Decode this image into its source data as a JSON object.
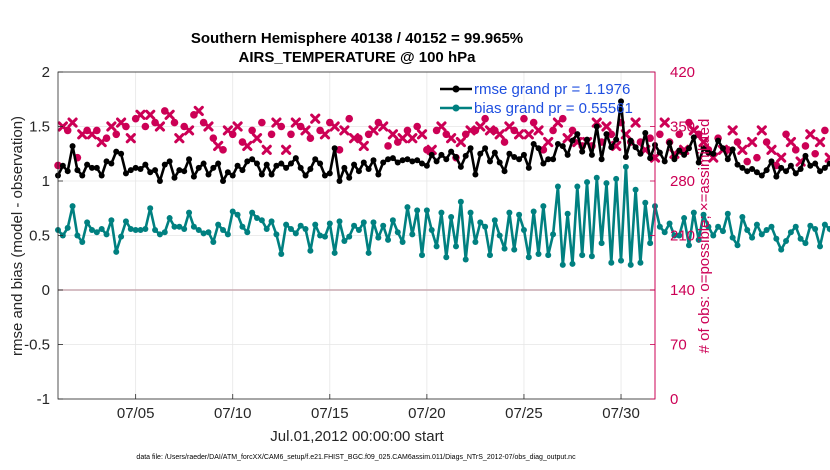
{
  "figure": {
    "title_line1": "Southern Hemisphere 40138 / 40152 = 99.965%",
    "title_line2": "AIRS_TEMPERATURE @ 100 hPa",
    "footer": "data file: /Users/raeder/DAI/ATM_forcXX/CAM6_setup/f.e21.FHIST_BGC.f09_025.CAM6assim.011/Diags_NTrS_2012-07/obs_diag_output.nc"
  },
  "chart_data": {
    "type": "line",
    "title": "Southern Hemisphere 40138 / 40152 = 99.965%",
    "subtitle": "AIRS_TEMPERATURE @ 100 hPa",
    "xlabel": "Jul.01,2012 00:00:00 start",
    "ylabel": "rmse and bias (model - observation)",
    "y2label": "# of obs: o=possible; ×=assimilated",
    "xlim": [
      1.0,
      31.75
    ],
    "ylim": [
      -1,
      2
    ],
    "y2lim": [
      0,
      420
    ],
    "x_ticks": [
      5,
      10,
      15,
      20,
      25,
      30
    ],
    "x_tick_labels": [
      "07/05",
      "07/10",
      "07/15",
      "07/20",
      "07/25",
      "07/30"
    ],
    "y_ticks": [
      -1,
      -0.5,
      0,
      0.5,
      1,
      1.5,
      2
    ],
    "y_tick_labels": [
      "-1",
      "-0.5",
      "0",
      "0.5",
      "1",
      "1.5",
      "2"
    ],
    "y2_ticks": [
      0,
      70,
      140,
      210,
      280,
      350,
      420
    ],
    "y2_tick_labels": [
      "0",
      "70",
      "140",
      "210",
      "280",
      "350",
      "420"
    ],
    "zero_line": 0,
    "grid": true,
    "legend_position": "top-right",
    "x_start": 1.0,
    "x_step": 0.25,
    "series": [
      {
        "name": "rmse grand pr = 1.1976",
        "color": "#000000",
        "marker": "circle",
        "values": [
          1.05,
          1.14,
          1.09,
          1.32,
          1.1,
          1.05,
          1.15,
          1.12,
          1.12,
          1.05,
          1.18,
          1.16,
          1.27,
          1.25,
          1.07,
          1.1,
          1.12,
          1.11,
          1.15,
          1.08,
          1.1,
          1.0,
          1.15,
          1.18,
          1.03,
          1.1,
          1.09,
          1.2,
          1.04,
          1.12,
          1.16,
          1.06,
          1.12,
          1.16,
          1.0,
          1.08,
          1.05,
          1.14,
          1.1,
          1.18,
          1.2,
          1.16,
          1.06,
          1.15,
          1.06,
          1.14,
          1.16,
          1.12,
          1.16,
          1.21,
          1.12,
          1.05,
          1.11,
          1.2,
          1.16,
          1.05,
          1.07,
          1.3,
          1.0,
          1.12,
          1.03,
          1.15,
          1.09,
          1.17,
          1.11,
          1.19,
          1.06,
          1.17,
          1.2,
          1.21,
          1.17,
          1.19,
          1.2,
          1.18,
          1.19,
          1.16,
          1.14,
          1.24,
          1.18,
          1.24,
          1.2,
          1.27,
          1.22,
          1.13,
          1.23,
          1.3,
          1.06,
          1.25,
          1.3,
          1.18,
          1.26,
          1.17,
          1.09,
          1.25,
          1.22,
          1.2,
          1.24,
          1.12,
          1.34,
          1.3,
          1.16,
          1.2,
          1.2,
          1.34,
          1.32,
          1.24,
          1.37,
          1.43,
          1.27,
          1.38,
          1.24,
          1.5,
          1.2,
          1.43,
          1.31,
          1.38,
          1.73,
          1.22,
          1.37,
          1.31,
          1.25,
          1.44,
          1.21,
          1.33,
          1.26,
          1.18,
          1.35,
          1.2,
          1.28,
          1.24,
          1.3,
          1.4,
          1.17,
          1.3,
          1.26,
          1.25,
          1.37,
          1.3,
          1.2,
          1.29,
          1.15,
          1.12,
          1.09,
          1.11,
          1.08,
          1.05,
          1.1,
          1.18,
          1.04,
          1.12,
          1.09,
          1.14,
          1.07,
          1.11,
          1.23,
          1.14,
          1.16,
          1.09,
          1.12,
          1.16,
          1.14,
          1.09,
          1.12,
          1.2,
          1.05,
          1.12,
          1.16,
          1.24,
          1.18,
          1.13,
          1.15,
          1.07,
          1.1,
          1.04
        ]
      },
      {
        "name": "bias grand pr = 0.55561",
        "color": "#008080",
        "marker": "circle",
        "values": [
          0.55,
          0.5,
          0.57,
          0.77,
          0.5,
          0.44,
          0.62,
          0.55,
          0.53,
          0.56,
          0.51,
          0.64,
          0.35,
          0.49,
          0.63,
          0.56,
          0.55,
          0.55,
          0.56,
          0.75,
          0.55,
          0.51,
          0.53,
          0.66,
          0.58,
          0.58,
          0.56,
          0.71,
          0.58,
          0.55,
          0.52,
          0.53,
          0.44,
          0.6,
          0.55,
          0.51,
          0.72,
          0.69,
          0.58,
          0.53,
          0.71,
          0.66,
          0.64,
          0.56,
          0.63,
          0.51,
          0.33,
          0.6,
          0.56,
          0.52,
          0.59,
          0.56,
          0.36,
          0.6,
          0.5,
          0.49,
          0.61,
          0.34,
          0.63,
          0.45,
          0.49,
          0.59,
          0.55,
          0.62,
          0.34,
          0.62,
          0.48,
          0.59,
          0.46,
          0.64,
          0.53,
          0.44,
          0.76,
          0.51,
          0.73,
          0.32,
          0.73,
          0.55,
          0.4,
          0.71,
          0.3,
          0.67,
          0.4,
          0.81,
          0.28,
          0.71,
          0.44,
          0.62,
          0.58,
          0.32,
          0.64,
          0.5,
          0.38,
          0.71,
          0.37,
          0.69,
          0.55,
          0.3,
          0.72,
          0.33,
          0.77,
          0.32,
          0.51,
          0.95,
          0.23,
          0.7,
          0.24,
          0.95,
          0.32,
          0.99,
          0.31,
          1.03,
          0.43,
          0.98,
          0.25,
          1.02,
          0.27,
          1.13,
          0.23,
          0.92,
          0.25,
          0.8,
          0.43,
          0.77,
          0.58,
          0.53,
          0.61,
          0.5,
          0.5,
          0.66,
          0.41,
          0.71,
          0.46,
          0.69,
          0.58,
          0.5,
          0.58,
          0.54,
          0.7,
          0.48,
          0.41,
          0.67,
          0.55,
          0.48,
          0.6,
          0.51,
          0.55,
          0.58,
          0.47,
          0.37,
          0.45,
          0.53,
          0.58,
          0.47,
          0.43,
          0.59,
          0.56,
          0.4,
          0.6,
          0.56,
          0.45,
          0.5,
          0.48,
          0.45,
          0.37,
          0.57,
          0.52,
          0.4,
          0.6,
          0.43,
          0.46,
          0.4,
          0.44,
          0.38
        ]
      },
      {
        "name": "obs possible",
        "axis": "right",
        "color": "#cc0055",
        "marker": "circle",
        "values": [
          300,
          350,
          345,
          355,
          310,
          340,
          345,
          340,
          345,
          330,
          335,
          350,
          340,
          355,
          350,
          335,
          360,
          365,
          350,
          365,
          355,
          350,
          370,
          365,
          355,
          335,
          350,
          345,
          365,
          370,
          355,
          350,
          335,
          325,
          320,
          345,
          340,
          350,
          330,
          325,
          345,
          335,
          355,
          320,
          340,
          355,
          350,
          320,
          340,
          355,
          350,
          345,
          335,
          360,
          345,
          340,
          355,
          350,
          320,
          345,
          360,
          335,
          335,
          325,
          340,
          345,
          355,
          350,
          325,
          340,
          330,
          335,
          345,
          335,
          350,
          340,
          320,
          320,
          345,
          350,
          340,
          335,
          310,
          330,
          340,
          345,
          345,
          350,
          360,
          345,
          345,
          340,
          330,
          350,
          345,
          340,
          360,
          340,
          355,
          345,
          320,
          330,
          345,
          355,
          360,
          335,
          345,
          330,
          325,
          330,
          325,
          355,
          330,
          350,
          340,
          325,
          355,
          340,
          330,
          355,
          330,
          320,
          335,
          310,
          340,
          355,
          330,
          315,
          340,
          320,
          355,
          345,
          340,
          330,
          320,
          310,
          335,
          320,
          320,
          345,
          330,
          320,
          305,
          330,
          310,
          345,
          330,
          320,
          300,
          310,
          340,
          330,
          320,
          305,
          325,
          340,
          315,
          330,
          345,
          310,
          335,
          325,
          305,
          320,
          330,
          310,
          300,
          355,
          345,
          330,
          305,
          345,
          355,
          320,
          350,
          300,
          330,
          345,
          340,
          330,
          320,
          295,
          325,
          350,
          330,
          340
        ]
      },
      {
        "name": "obs assimilated",
        "axis": "right",
        "color": "#cc0055",
        "marker": "x",
        "values": [
          300,
          350,
          345,
          355,
          310,
          340,
          345,
          340,
          345,
          330,
          335,
          350,
          340,
          355,
          350,
          335,
          360,
          365,
          350,
          365,
          355,
          350,
          370,
          365,
          355,
          335,
          350,
          345,
          365,
          370,
          355,
          350,
          335,
          325,
          320,
          345,
          340,
          350,
          330,
          325,
          345,
          335,
          355,
          320,
          340,
          355,
          350,
          320,
          340,
          355,
          350,
          345,
          335,
          360,
          345,
          340,
          355,
          350,
          320,
          345,
          360,
          335,
          335,
          325,
          340,
          345,
          355,
          350,
          325,
          340,
          330,
          335,
          345,
          335,
          350,
          340,
          320,
          320,
          345,
          350,
          340,
          335,
          310,
          330,
          340,
          345,
          345,
          350,
          360,
          345,
          345,
          340,
          330,
          350,
          345,
          340,
          360,
          340,
          355,
          345,
          320,
          330,
          345,
          355,
          360,
          335,
          345,
          330,
          325,
          330,
          325,
          355,
          330,
          350,
          340,
          325,
          355,
          340,
          330,
          355,
          330,
          320,
          335,
          310,
          340,
          355,
          330,
          315,
          340,
          320,
          355,
          345,
          340,
          330,
          320,
          310,
          335,
          320,
          320,
          345,
          330,
          320,
          305,
          330,
          310,
          345,
          330,
          320,
          300,
          310,
          340,
          330,
          320,
          305,
          325,
          340,
          315,
          330,
          345,
          310,
          335,
          325,
          305,
          320,
          330,
          310,
          300,
          355,
          345,
          330,
          305,
          345,
          355,
          320,
          350,
          300,
          330,
          345,
          340,
          330,
          320,
          295,
          325,
          350,
          330,
          340
        ]
      }
    ]
  },
  "colors": {
    "rmse": "#000000",
    "bias": "#008080",
    "obs": "#cc0055",
    "legend_text": "#1f4fe0",
    "grid": "#e6e6e6",
    "zero_line": "#c9a9b0"
  }
}
